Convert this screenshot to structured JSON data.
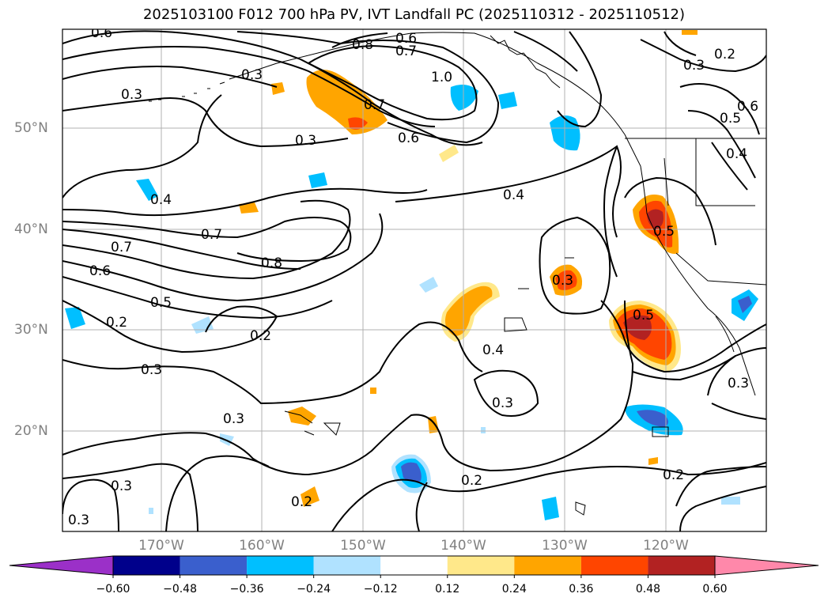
{
  "title": "2025103100 F012 700 hPa PV, IVT Landfall PC (2025110312 - 2025110512)",
  "lat_labels": [
    "50°N",
    "40°N",
    "30°N",
    "20°N"
  ],
  "lon_labels": [
    "170°W",
    "160°W",
    "150°W",
    "140°W",
    "130°W",
    "120°W"
  ],
  "colorbar": {
    "ticks": [
      "−0.60",
      "−0.48",
      "−0.36",
      "−0.24",
      "−0.12",
      "0.12",
      "0.24",
      "0.36",
      "0.48",
      "0.60"
    ],
    "colors": [
      "#9b30c8",
      "#00008b",
      "#3a5fcd",
      "#00bfff",
      "#b0e2ff",
      "#ffffff",
      "#ffe88a",
      "#ffa500",
      "#ff4500",
      "#b22222",
      "#ff88aa"
    ]
  },
  "contour_labels": [
    "0.6",
    "0.8",
    "0.6",
    "0.7",
    "0.3",
    "1.0",
    "0.3",
    "0.7",
    "0.6",
    "0.3",
    "0.2",
    "0.3",
    "0.6",
    "0.5",
    "0.4",
    "0.4",
    "0.4",
    "0.7",
    "0.7",
    "0.8",
    "0.6",
    "0.5",
    "0.5",
    "0.3",
    "0.2",
    "0.2",
    "0.3",
    "0.4",
    "0.5",
    "0.3",
    "0.3",
    "0.2",
    "0.2",
    "0.2",
    "0.3",
    "0.3"
  ],
  "colors": {
    "contour": "#000000",
    "grid": "#b0b0b0",
    "coast": "#000000",
    "axis_label": "#808080"
  }
}
